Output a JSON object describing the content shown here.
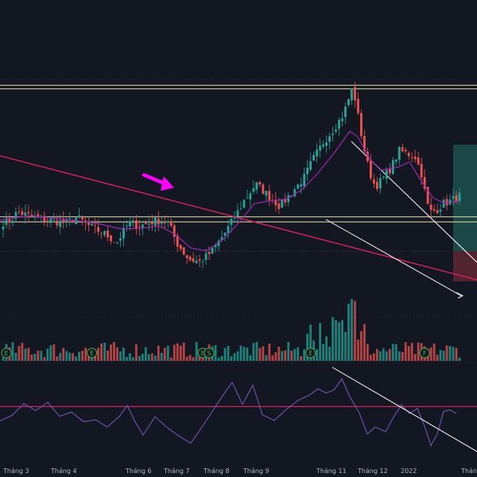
{
  "chart_data": {
    "type": "candlestick",
    "title": "",
    "grid": false,
    "colors": {
      "background": "#131722",
      "up": "#26a69a",
      "down": "#ef5350",
      "ma": "#9c27b0",
      "trendline": "#e91e63",
      "channel": "#ffffff",
      "hline": "#e8e3a8",
      "rsi": "#7e57c2",
      "rsi_level": "#e91e63",
      "annotation_arrow": "#ff00ff",
      "event_marker": "#4caf50",
      "long_target_zone": "#1e4d4b",
      "long_stop_zone": "#5a2631"
    },
    "x_axis": {
      "tick_labels": [
        "Tháng 3",
        "Tháng 4",
        "Tháng 6",
        "Tháng 7",
        "Tháng 8",
        "Tháng 9",
        "Tháng 11",
        "Tháng 12",
        "2022",
        "Tháng"
      ]
    },
    "price_panel": {
      "ylim": [
        0,
        100
      ],
      "resistance_levels": [
        86.5,
        85.2
      ],
      "support_levels": [
        39.2,
        37.4
      ],
      "close_path": [
        [
          0,
          37
        ],
        [
          12,
          38
        ],
        [
          20,
          41
        ],
        [
          30,
          40
        ],
        [
          42,
          39
        ],
        [
          60,
          38
        ],
        [
          80,
          37
        ],
        [
          95,
          39
        ],
        [
          110,
          36
        ],
        [
          130,
          33
        ],
        [
          145,
          30
        ],
        [
          160,
          37
        ],
        [
          175,
          36
        ],
        [
          195,
          38
        ],
        [
          210,
          37
        ],
        [
          220,
          30
        ],
        [
          235,
          24
        ],
        [
          250,
          23
        ],
        [
          265,
          27
        ],
        [
          280,
          33
        ],
        [
          295,
          40
        ],
        [
          305,
          45
        ],
        [
          320,
          51
        ],
        [
          335,
          47
        ],
        [
          350,
          43
        ],
        [
          365,
          48
        ],
        [
          380,
          53
        ],
        [
          392,
          60
        ],
        [
          405,
          66
        ],
        [
          418,
          71
        ],
        [
          430,
          76
        ],
        [
          437,
          82
        ],
        [
          442,
          86
        ],
        [
          448,
          76
        ],
        [
          455,
          65
        ],
        [
          462,
          56
        ],
        [
          470,
          50
        ],
        [
          480,
          53
        ],
        [
          490,
          57
        ],
        [
          500,
          63
        ],
        [
          510,
          62
        ],
        [
          520,
          61
        ],
        [
          528,
          55
        ],
        [
          535,
          44
        ],
        [
          540,
          41
        ],
        [
          548,
          42
        ],
        [
          556,
          44
        ],
        [
          565,
          45
        ],
        [
          572,
          46
        ],
        [
          578,
          47
        ]
      ],
      "ma_path": [
        [
          0,
          38
        ],
        [
          20,
          39
        ],
        [
          40,
          39.5
        ],
        [
          60,
          39
        ],
        [
          90,
          38
        ],
        [
          120,
          37
        ],
        [
          150,
          35
        ],
        [
          175,
          35
        ],
        [
          200,
          36
        ],
        [
          220,
          33
        ],
        [
          240,
          28
        ],
        [
          260,
          27
        ],
        [
          280,
          31
        ],
        [
          300,
          37
        ],
        [
          320,
          44
        ],
        [
          340,
          45
        ],
        [
          360,
          45.5
        ],
        [
          380,
          49
        ],
        [
          400,
          55
        ],
        [
          420,
          62
        ],
        [
          440,
          70
        ],
        [
          450,
          68
        ],
        [
          465,
          60
        ],
        [
          480,
          56
        ],
        [
          500,
          57
        ],
        [
          515,
          59
        ],
        [
          530,
          52
        ],
        [
          545,
          46
        ],
        [
          560,
          44
        ],
        [
          578,
          45
        ]
      ]
    },
    "volume_panel": {
      "event_markers": [
        {
          "label": "E",
          "bar": 1
        },
        {
          "label": "E",
          "bar": 28
        },
        {
          "label": "E",
          "bar": 63
        },
        {
          "label": "S",
          "bar": 65
        },
        {
          "label": "E",
          "bar": 97
        },
        {
          "label": "F",
          "bar": 133
        }
      ]
    },
    "rsi_panel": {
      "level": 60,
      "ylim": [
        20,
        90
      ],
      "path": [
        [
          0,
          50
        ],
        [
          15,
          53
        ],
        [
          30,
          62
        ],
        [
          45,
          58
        ],
        [
          60,
          63
        ],
        [
          75,
          52
        ],
        [
          90,
          57
        ],
        [
          105,
          48
        ],
        [
          120,
          50
        ],
        [
          135,
          45
        ],
        [
          150,
          52
        ],
        [
          160,
          60
        ],
        [
          170,
          48
        ],
        [
          180,
          40
        ],
        [
          195,
          52
        ],
        [
          210,
          45
        ],
        [
          225,
          38
        ],
        [
          240,
          34
        ],
        [
          255,
          46
        ],
        [
          270,
          60
        ],
        [
          282,
          70
        ],
        [
          292,
          78
        ],
        [
          305,
          62
        ],
        [
          318,
          76
        ],
        [
          330,
          55
        ],
        [
          345,
          50
        ],
        [
          360,
          58
        ],
        [
          375,
          64
        ],
        [
          390,
          68
        ],
        [
          400,
          74
        ],
        [
          410,
          70
        ],
        [
          420,
          72
        ],
        [
          430,
          80
        ],
        [
          440,
          68
        ],
        [
          452,
          56
        ],
        [
          462,
          40
        ],
        [
          472,
          46
        ],
        [
          485,
          42
        ],
        [
          495,
          52
        ],
        [
          505,
          62
        ],
        [
          515,
          54
        ],
        [
          525,
          58
        ],
        [
          535,
          44
        ],
        [
          542,
          32
        ],
        [
          550,
          40
        ],
        [
          558,
          56
        ],
        [
          566,
          58
        ],
        [
          574,
          55
        ]
      ]
    }
  }
}
